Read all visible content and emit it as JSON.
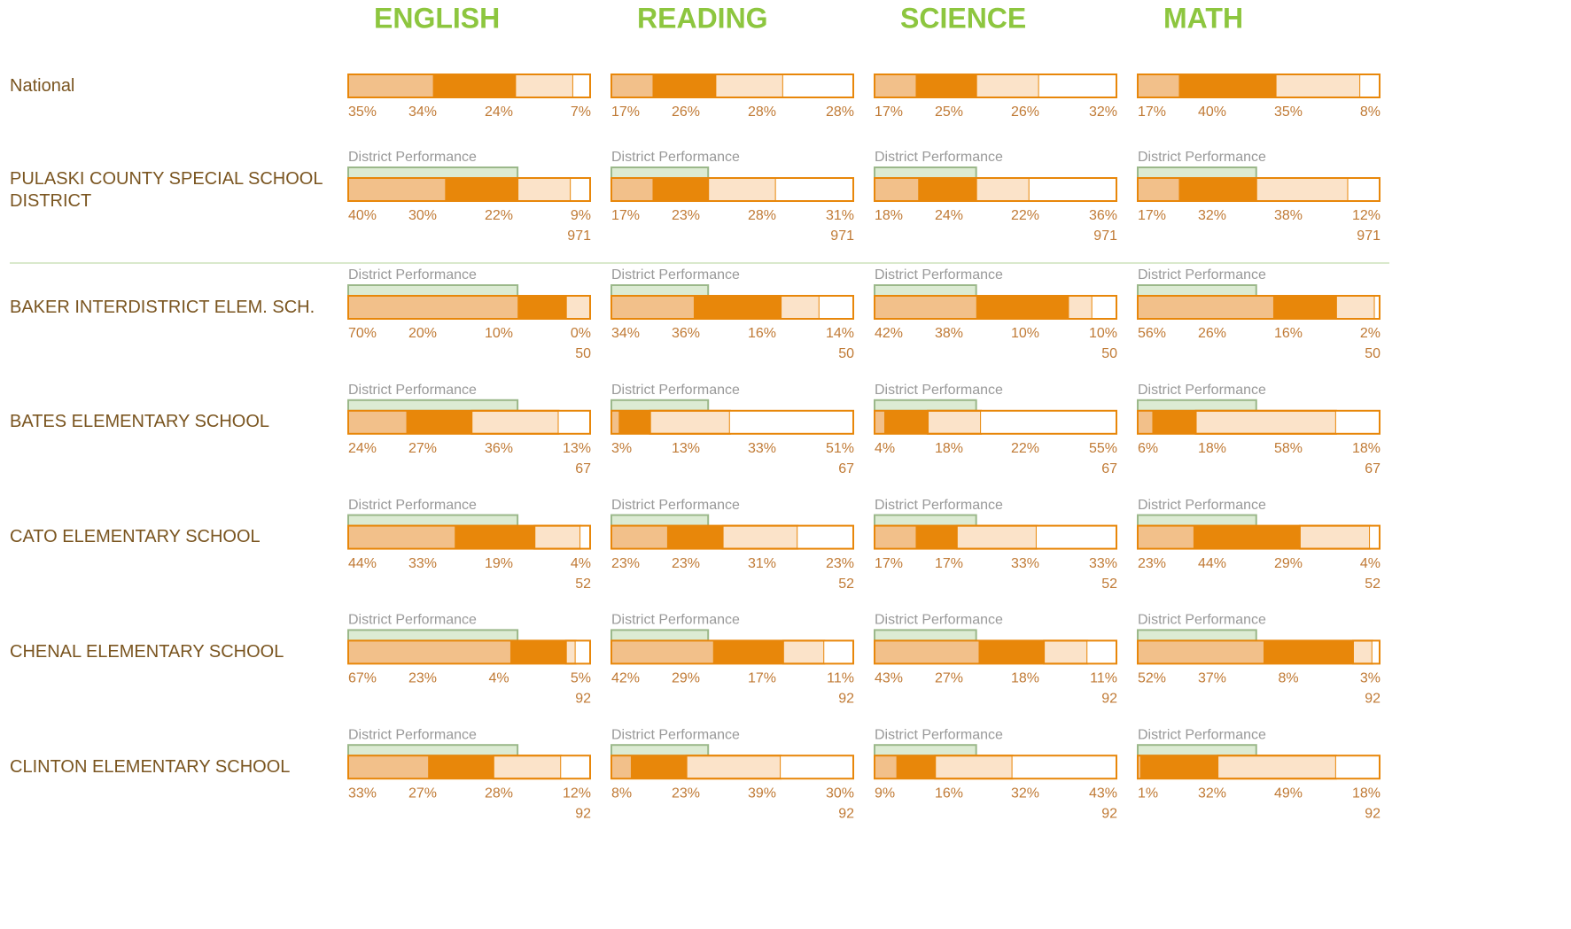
{
  "subjects": [
    "ENGLISH",
    "READING",
    "SCIENCE",
    "MATH"
  ],
  "district_label": "District Performance",
  "national": {
    "name": "National",
    "cells": [
      {
        "values": [
          35,
          34,
          24,
          7
        ],
        "value_labels": [
          "35%",
          "34%",
          "24%",
          "7%"
        ]
      },
      {
        "values": [
          17,
          26,
          28,
          28
        ],
        "value_labels": [
          "17%",
          "26%",
          "28%",
          "28%"
        ]
      },
      {
        "values": [
          17,
          25,
          26,
          32
        ],
        "value_labels": [
          "17%",
          "25%",
          "26%",
          "32%"
        ]
      },
      {
        "values": [
          17,
          40,
          35,
          8
        ],
        "value_labels": [
          "17%",
          "40%",
          "35%",
          "8%"
        ]
      }
    ]
  },
  "district": {
    "name": "PULASKI COUNTY SPECIAL SCHOOL DISTRICT",
    "cells": [
      {
        "values": [
          40,
          30,
          22,
          9
        ],
        "value_labels": [
          "40%",
          "30%",
          "22%",
          "9%"
        ],
        "count": 971
      },
      {
        "values": [
          17,
          23,
          28,
          31
        ],
        "value_labels": [
          "17%",
          "23%",
          "28%",
          "31%"
        ],
        "count": 971
      },
      {
        "values": [
          18,
          24,
          22,
          36
        ],
        "value_labels": [
          "18%",
          "24%",
          "22%",
          "36%"
        ],
        "count": 971
      },
      {
        "values": [
          17,
          32,
          38,
          12
        ],
        "value_labels": [
          "17%",
          "32%",
          "38%",
          "12%"
        ],
        "count": 971
      }
    ]
  },
  "schools": [
    {
      "name": "BAKER INTERDISTRICT ELEM. SCH.",
      "cells": [
        {
          "values": [
            70,
            20,
            10,
            0
          ],
          "value_labels": [
            "70%",
            "20%",
            "10%",
            "0%"
          ],
          "count": 50
        },
        {
          "values": [
            34,
            36,
            16,
            14
          ],
          "value_labels": [
            "34%",
            "36%",
            "16%",
            "14%"
          ],
          "count": 50
        },
        {
          "values": [
            42,
            38,
            10,
            10
          ],
          "value_labels": [
            "42%",
            "38%",
            "10%",
            "10%"
          ],
          "count": 50
        },
        {
          "values": [
            56,
            26,
            16,
            2
          ],
          "value_labels": [
            "56%",
            "26%",
            "16%",
            "2%"
          ],
          "count": 50
        }
      ]
    },
    {
      "name": "BATES ELEMENTARY SCHOOL",
      "cells": [
        {
          "values": [
            24,
            27,
            36,
            13
          ],
          "value_labels": [
            "24%",
            "27%",
            "36%",
            "13%"
          ],
          "count": 67
        },
        {
          "values": [
            3,
            13,
            33,
            51
          ],
          "value_labels": [
            "3%",
            "13%",
            "33%",
            "51%"
          ],
          "count": 67
        },
        {
          "values": [
            4,
            18,
            22,
            55
          ],
          "value_labels": [
            "4%",
            "18%",
            "22%",
            "55%"
          ],
          "count": 67
        },
        {
          "values": [
            6,
            18,
            58,
            18
          ],
          "value_labels": [
            "6%",
            "18%",
            "58%",
            "18%"
          ],
          "count": 67
        }
      ]
    },
    {
      "name": "CATO ELEMENTARY SCHOOL",
      "cells": [
        {
          "values": [
            44,
            33,
            19,
            4
          ],
          "value_labels": [
            "44%",
            "33%",
            "19%",
            "4%"
          ],
          "count": 52
        },
        {
          "values": [
            23,
            23,
            31,
            23
          ],
          "value_labels": [
            "23%",
            "23%",
            "31%",
            "23%"
          ],
          "count": 52
        },
        {
          "values": [
            17,
            17,
            33,
            33
          ],
          "value_labels": [
            "17%",
            "17%",
            "33%",
            "33%"
          ],
          "count": 52
        },
        {
          "values": [
            23,
            44,
            29,
            4
          ],
          "value_labels": [
            "23%",
            "44%",
            "29%",
            "4%"
          ],
          "count": 52
        }
      ]
    },
    {
      "name": "CHENAL ELEMENTARY SCHOOL",
      "cells": [
        {
          "values": [
            67,
            23,
            4,
            5
          ],
          "value_labels": [
            "67%",
            "23%",
            "4%",
            "5%"
          ],
          "count": 92
        },
        {
          "values": [
            42,
            29,
            17,
            11
          ],
          "value_labels": [
            "42%",
            "29%",
            "17%",
            "11%"
          ],
          "count": 92
        },
        {
          "values": [
            43,
            27,
            18,
            11
          ],
          "value_labels": [
            "43%",
            "27%",
            "18%",
            "11%"
          ],
          "count": 92
        },
        {
          "values": [
            52,
            37,
            8,
            3
          ],
          "value_labels": [
            "52%",
            "37%",
            "8%",
            "3%"
          ],
          "count": 92
        }
      ]
    },
    {
      "name": "CLINTON ELEMENTARY SCHOOL",
      "cells": [
        {
          "values": [
            33,
            27,
            28,
            12
          ],
          "value_labels": [
            "33%",
            "27%",
            "28%",
            "12%"
          ],
          "count": 92
        },
        {
          "values": [
            8,
            23,
            39,
            30
          ],
          "value_labels": [
            "8%",
            "23%",
            "39%",
            "30%"
          ],
          "count": 92
        },
        {
          "values": [
            9,
            16,
            32,
            43
          ],
          "value_labels": [
            "9%",
            "16%",
            "32%",
            "43%"
          ],
          "count": 92
        },
        {
          "values": [
            1,
            32,
            49,
            18
          ],
          "value_labels": [
            "1%",
            "32%",
            "49%",
            "18%"
          ],
          "count": 92
        }
      ]
    }
  ]
}
